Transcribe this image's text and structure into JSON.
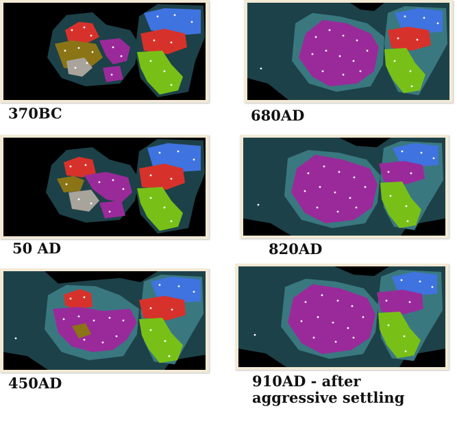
{
  "colors": {
    "ocean": "#000000",
    "shallow_water": "#1d4148",
    "coast": "#3a7880",
    "frame": "#f3ead6",
    "civ_red": "#d6322b",
    "civ_blue": "#3f73e0",
    "civ_green": "#78c017",
    "civ_purple": "#9a2a9a",
    "civ_olive": "#8a7416",
    "civ_gray": "#a8a49c"
  },
  "snapshots": [
    {
      "caption": "370BC",
      "ocean_mode": "black"
    },
    {
      "caption": "680AD",
      "ocean_mode": "explored"
    },
    {
      "caption": "50 AD",
      "ocean_mode": "black"
    },
    {
      "caption": "820AD",
      "ocean_mode": "explored"
    },
    {
      "caption": "450AD",
      "ocean_mode": "partial"
    },
    {
      "caption": "910AD - after",
      "caption_line2": "aggressive settling",
      "ocean_mode": "explored"
    }
  ]
}
